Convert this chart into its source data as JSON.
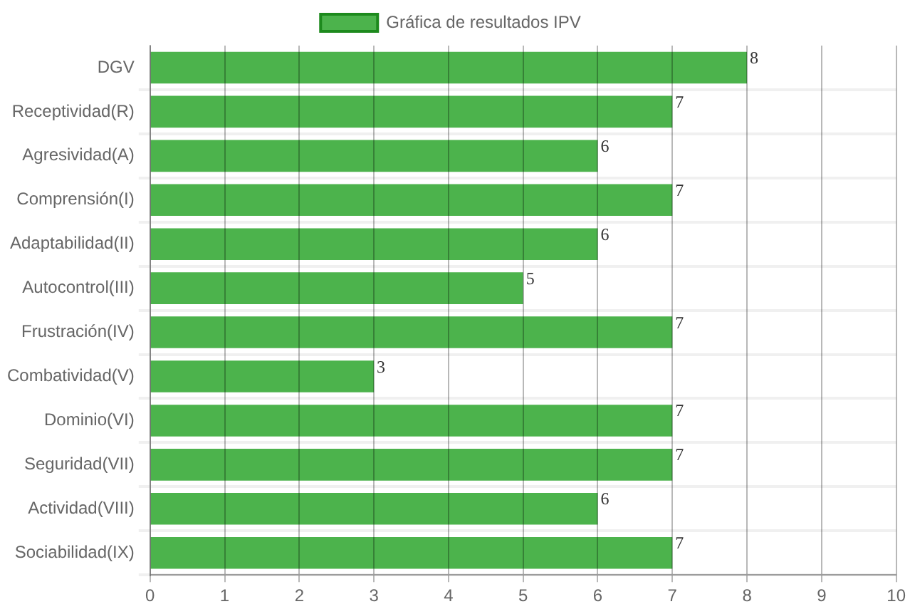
{
  "chart_data": {
    "type": "bar",
    "orientation": "horizontal",
    "categories": [
      "DGV",
      "Receptividad(R)",
      "Agresividad(A)",
      "Comprensión(I)",
      "Adaptabilidad(II)",
      "Autocontrol(III)",
      "Frustración(IV)",
      "Combatividad(V)",
      "Dominio(VI)",
      "Seguridad(VII)",
      "Actividad(VIII)",
      "Sociabilidad(IX)"
    ],
    "series": [
      {
        "name": "Gráfica de resultados IPV",
        "color": "#4cb34c",
        "values": [
          8,
          7,
          6,
          7,
          6,
          5,
          7,
          3,
          7,
          7,
          6,
          7
        ]
      }
    ],
    "xlim": [
      0,
      10
    ],
    "xticks": [
      0,
      1,
      2,
      3,
      4,
      5,
      6,
      7,
      8,
      9,
      10
    ],
    "grid": true,
    "legend": "top",
    "data_labels": true
  }
}
